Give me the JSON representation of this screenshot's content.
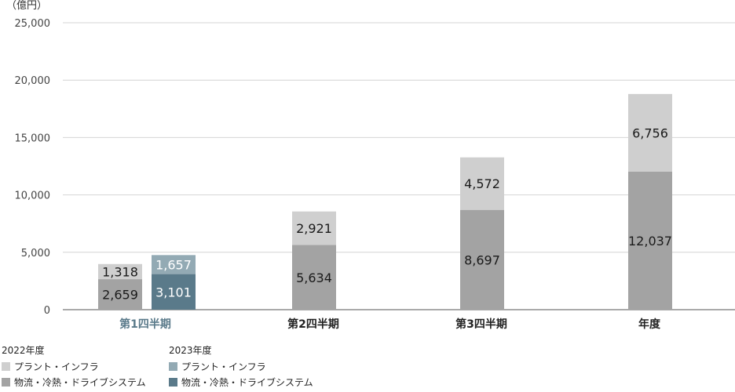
{
  "chart_data": {
    "type": "bar",
    "stacked": true,
    "ylabel": "（億円）",
    "ylim": [
      0,
      25000
    ],
    "yticks": [
      0,
      5000,
      10000,
      15000,
      20000,
      25000
    ],
    "yticklabels": [
      "0",
      "5,000",
      "10,000",
      "15,000",
      "20,000",
      "25,000"
    ],
    "grid": true,
    "categories": [
      "第1四半期",
      "第2四半期",
      "第3四半期",
      "年度"
    ],
    "highlight_category_color": "#5a7a8a",
    "category_color": "#222222",
    "groups": [
      {
        "name": "2022年度",
        "series": [
          {
            "name": "物流・冷熱・ドライブシステム",
            "color": "#a3a3a3",
            "values": [
              2659,
              5634,
              8697,
              12037
            ],
            "labels": [
              "2,659",
              "5,634",
              "8,697",
              "12,037"
            ]
          },
          {
            "name": "プラント・インフラ",
            "color": "#cfcfcf",
            "values": [
              1318,
              2921,
              4572,
              6756
            ],
            "labels": [
              "1,318",
              "2,921",
              "4,572",
              "6,756"
            ]
          }
        ]
      },
      {
        "name": "2023年度",
        "series": [
          {
            "name": "物流・冷熱・ドライブシステム",
            "color": "#5a7a8a",
            "values": [
              3101,
              null,
              null,
              null
            ],
            "labels": [
              "3,101",
              "",
              "",
              ""
            ]
          },
          {
            "name": "プラント・インフラ",
            "color": "#93aab4",
            "values": [
              1657,
              null,
              null,
              null
            ],
            "labels": [
              "1,657",
              "",
              "",
              ""
            ]
          }
        ]
      }
    ]
  },
  "legend": {
    "groups": [
      {
        "title": "2022年度",
        "items": [
          {
            "label": "プラント・インフラ",
            "color": "#cfcfcf"
          },
          {
            "label": "物流・冷熱・ドライブシステム",
            "color": "#a3a3a3"
          }
        ]
      },
      {
        "title": "2023年度",
        "items": [
          {
            "label": "プラント・インフラ",
            "color": "#93aab4"
          },
          {
            "label": "物流・冷熱・ドライブシステム",
            "color": "#5a7a8a"
          }
        ]
      }
    ]
  }
}
